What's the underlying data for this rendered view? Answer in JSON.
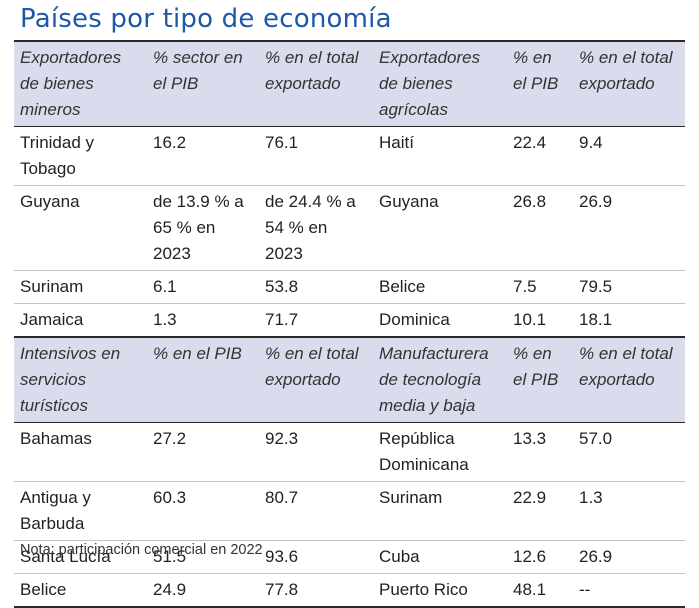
{
  "title": "Países por tipo de economía",
  "sections": [
    {
      "headers": [
        "Exportadores de bienes mineros",
        "% sector en el PIB",
        "% en el total exportado",
        "Exportadores de bienes agrícolas",
        "% en el PIB",
        "% en el total exportado"
      ],
      "rows": [
        [
          "Trinidad y Tobago",
          "16.2",
          "76.1",
          "Haití",
          "22.4",
          "9.4"
        ],
        [
          "Guyana",
          "de 13.9 % a 65 % en 2023",
          "de 24.4 % a 54 % en 2023",
          "Guyana",
          "26.8",
          "26.9"
        ],
        [
          "Surinam",
          "6.1",
          "53.8",
          "Belice",
          "7.5",
          "79.5"
        ],
        [
          "Jamaica",
          "1.3",
          "71.7",
          "Dominica",
          "10.1",
          "18.1"
        ]
      ]
    },
    {
      "headers": [
        "Intensivos en servicios turísticos",
        "% en el PIB",
        "% en el total exportado",
        "Manufacturera de tecnología media y baja",
        "% en el PIB",
        "% en el total exportado"
      ],
      "rows": [
        [
          "Bahamas",
          "27.2",
          "92.3",
          "República Dominicana",
          "13.3",
          "57.0"
        ],
        [
          "Antigua y Barbuda",
          "60.3",
          "80.7",
          "Surinam",
          "22.9",
          "1.3"
        ],
        [
          "Santa Lucía",
          "51.5",
          "93.6",
          "Cuba",
          "12.6",
          "26.9"
        ],
        [
          "Belice",
          "24.9",
          "77.8",
          "Puerto Rico",
          "48.1",
          "--"
        ]
      ]
    }
  ],
  "note": "Nota: participación comercial en 2022"
}
